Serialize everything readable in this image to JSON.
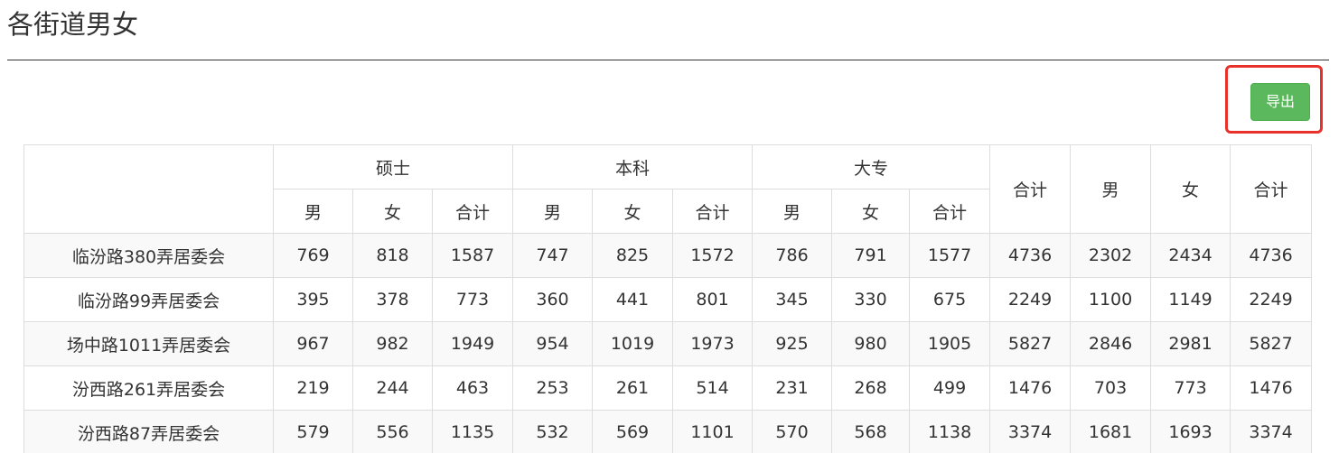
{
  "page": {
    "title": "各街道男女"
  },
  "toolbar": {
    "export_label": "导出"
  },
  "table": {
    "group_headers": [
      "硕士",
      "本科",
      "大专"
    ],
    "summary_headers": [
      "合计",
      "男",
      "女",
      "合计"
    ],
    "sub_headers": [
      "男",
      "女",
      "合计"
    ],
    "rows": [
      {
        "name": "临汾路380弄居委会",
        "values": [
          "769",
          "818",
          "1587",
          "747",
          "825",
          "1572",
          "786",
          "791",
          "1577",
          "4736",
          "2302",
          "2434",
          "4736"
        ]
      },
      {
        "name": "临汾路99弄居委会",
        "values": [
          "395",
          "378",
          "773",
          "360",
          "441",
          "801",
          "345",
          "330",
          "675",
          "2249",
          "1100",
          "1149",
          "2249"
        ]
      },
      {
        "name": "场中路1011弄居委会",
        "values": [
          "967",
          "982",
          "1949",
          "954",
          "1019",
          "1973",
          "925",
          "980",
          "1905",
          "5827",
          "2846",
          "2981",
          "5827"
        ]
      },
      {
        "name": "汾西路261弄居委会",
        "values": [
          "219",
          "244",
          "463",
          "253",
          "261",
          "514",
          "231",
          "268",
          "499",
          "1476",
          "703",
          "773",
          "1476"
        ]
      },
      {
        "name": "汾西路87弄居委会",
        "values": [
          "579",
          "556",
          "1135",
          "532",
          "569",
          "1101",
          "570",
          "568",
          "1138",
          "3374",
          "1681",
          "1693",
          "3374"
        ]
      }
    ]
  },
  "colors": {
    "export_button": "#5cb85c",
    "highlight_frame": "#e8312a",
    "table_border": "#dddddd",
    "striped_row": "#f9f9f9"
  }
}
